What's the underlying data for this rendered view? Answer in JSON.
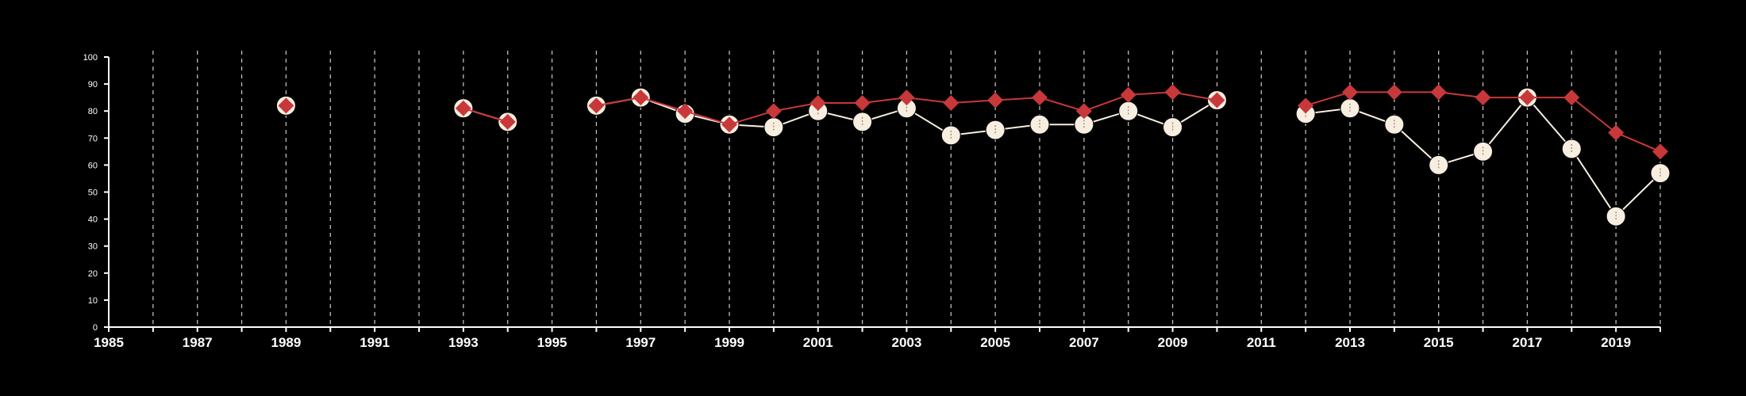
{
  "colors": {
    "background": "#000000",
    "axis": "#ffffff",
    "grid": "#bdbdbd",
    "series_red": "#c8383a",
    "series_cream": "#f7eee0"
  },
  "chart_data": {
    "type": "line",
    "title": "",
    "xlabel": "",
    "ylabel": "",
    "xlim": [
      1985,
      2020
    ],
    "ylim": [
      0,
      100
    ],
    "grid": "vertical dashed lines at every year",
    "legend": "none",
    "x_ticks": [
      1985,
      1987,
      1989,
      1991,
      1993,
      1995,
      1997,
      1999,
      2001,
      2003,
      2005,
      2007,
      2009,
      2011,
      2013,
      2015,
      2017,
      2019
    ],
    "y_ticks": [
      0,
      10,
      20,
      30,
      40,
      50,
      60,
      70,
      80,
      90,
      100
    ],
    "series": [
      {
        "marker": "circle",
        "color": "#f7eee0",
        "points": [
          [
            1989,
            82
          ],
          [
            1993,
            81
          ],
          [
            1994,
            76
          ],
          [
            1996,
            82
          ],
          [
            1997,
            85
          ],
          [
            1998,
            79
          ],
          [
            1999,
            75
          ],
          [
            2000,
            74
          ],
          [
            2001,
            80
          ],
          [
            2002,
            76
          ],
          [
            2003,
            81
          ],
          [
            2004,
            71
          ],
          [
            2005,
            73
          ],
          [
            2006,
            75
          ],
          [
            2007,
            75
          ],
          [
            2008,
            80
          ],
          [
            2009,
            74
          ],
          [
            2010,
            84
          ],
          [
            2012,
            79
          ],
          [
            2013,
            81
          ],
          [
            2014,
            75
          ],
          [
            2015,
            60
          ],
          [
            2016,
            65
          ],
          [
            2017,
            85
          ],
          [
            2018,
            66
          ],
          [
            2019,
            41
          ],
          [
            2020,
            57
          ]
        ]
      },
      {
        "marker": "diamond",
        "color": "#c8383a",
        "points": [
          [
            1989,
            82
          ],
          [
            1993,
            81
          ],
          [
            1994,
            76
          ],
          [
            1996,
            82
          ],
          [
            1997,
            85
          ],
          [
            1998,
            80
          ],
          [
            1999,
            75
          ],
          [
            2000,
            80
          ],
          [
            2001,
            83
          ],
          [
            2002,
            83
          ],
          [
            2003,
            85
          ],
          [
            2004,
            83
          ],
          [
            2005,
            84
          ],
          [
            2006,
            85
          ],
          [
            2007,
            80
          ],
          [
            2008,
            86
          ],
          [
            2009,
            87
          ],
          [
            2010,
            84
          ],
          [
            2012,
            82
          ],
          [
            2013,
            87
          ],
          [
            2014,
            87
          ],
          [
            2015,
            87
          ],
          [
            2016,
            85
          ],
          [
            2017,
            85
          ],
          [
            2018,
            85
          ],
          [
            2019,
            72
          ],
          [
            2020,
            65
          ]
        ]
      }
    ]
  }
}
